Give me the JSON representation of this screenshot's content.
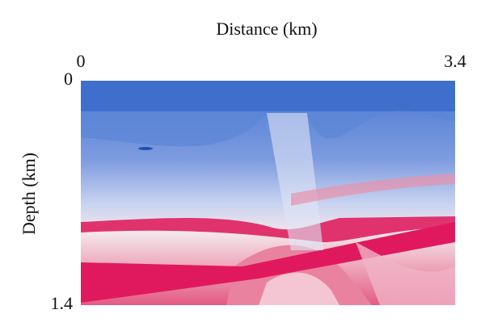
{
  "chart_data": {
    "type": "image",
    "xlabel": "Distance (km)",
    "ylabel": "Depth (km)",
    "xlim": [
      0,
      3.4
    ],
    "ylim": [
      0,
      1.4
    ],
    "xticks": [
      0,
      3.4
    ],
    "yticks": [
      0,
      1.4
    ]
  }
}
